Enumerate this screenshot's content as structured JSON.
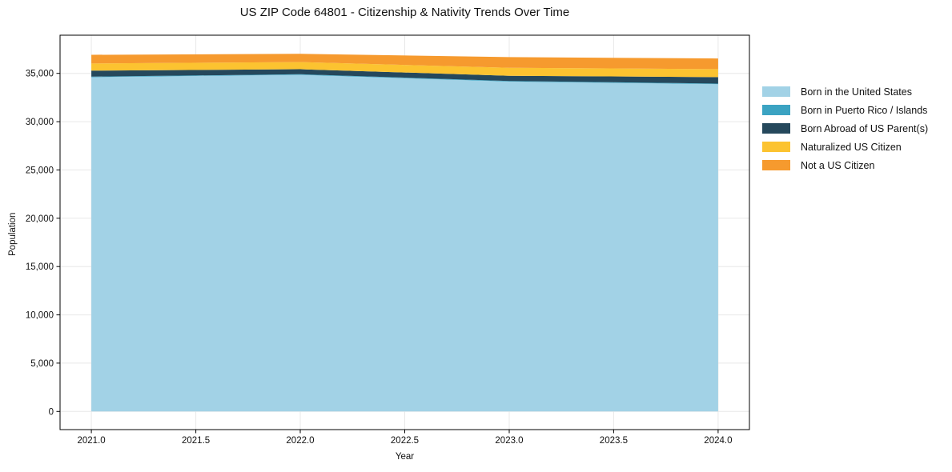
{
  "chart_data": {
    "type": "area",
    "stacked": true,
    "title": "US ZIP Code 64801 - Citizenship & Nativity Trends Over Time",
    "xlabel": "Year",
    "ylabel": "Population",
    "x": [
      2021,
      2022,
      2023,
      2024
    ],
    "series": [
      {
        "name": "Born in the United States",
        "color": "#a2d2e6",
        "values": [
          34600,
          34850,
          34150,
          33880
        ]
      },
      {
        "name": "Born in Puerto Rico / Islands",
        "color": "#3ba3c2",
        "values": [
          60,
          60,
          60,
          60
        ]
      },
      {
        "name": "Born Abroad of US Parent(s)",
        "color": "#25485c",
        "values": [
          620,
          520,
          540,
          670
        ]
      },
      {
        "name": "Naturalized US Citizen",
        "color": "#fcc330",
        "values": [
          740,
          740,
          830,
          830
        ]
      },
      {
        "name": "Not a US Citizen",
        "color": "#f69a2e",
        "values": [
          900,
          850,
          1100,
          1100
        ]
      }
    ],
    "stack_totals": [
      36920,
      37020,
      36680,
      36540
    ],
    "xticks": [
      2021.0,
      2021.5,
      2022.0,
      2022.5,
      2023.0,
      2023.5,
      2024.0
    ],
    "xtick_labels": [
      "2021.0",
      "2021.5",
      "2022.0",
      "2022.5",
      "2023.0",
      "2023.5",
      "2024.0"
    ],
    "yticks": [
      0,
      5000,
      10000,
      15000,
      20000,
      25000,
      30000,
      35000
    ],
    "ytick_labels": [
      "0",
      "5,000",
      "10,000",
      "15,000",
      "20,000",
      "25,000",
      "30,000",
      "35,000"
    ],
    "xlim": [
      2020.85,
      2024.15
    ],
    "ylim": [
      -1880,
      38950
    ],
    "grid": true,
    "grid_color": "#e8e8e8",
    "axis_color": "#000000",
    "text_color": "#111111",
    "background_color": "#ffffff",
    "legend_position": "right-outside"
  }
}
